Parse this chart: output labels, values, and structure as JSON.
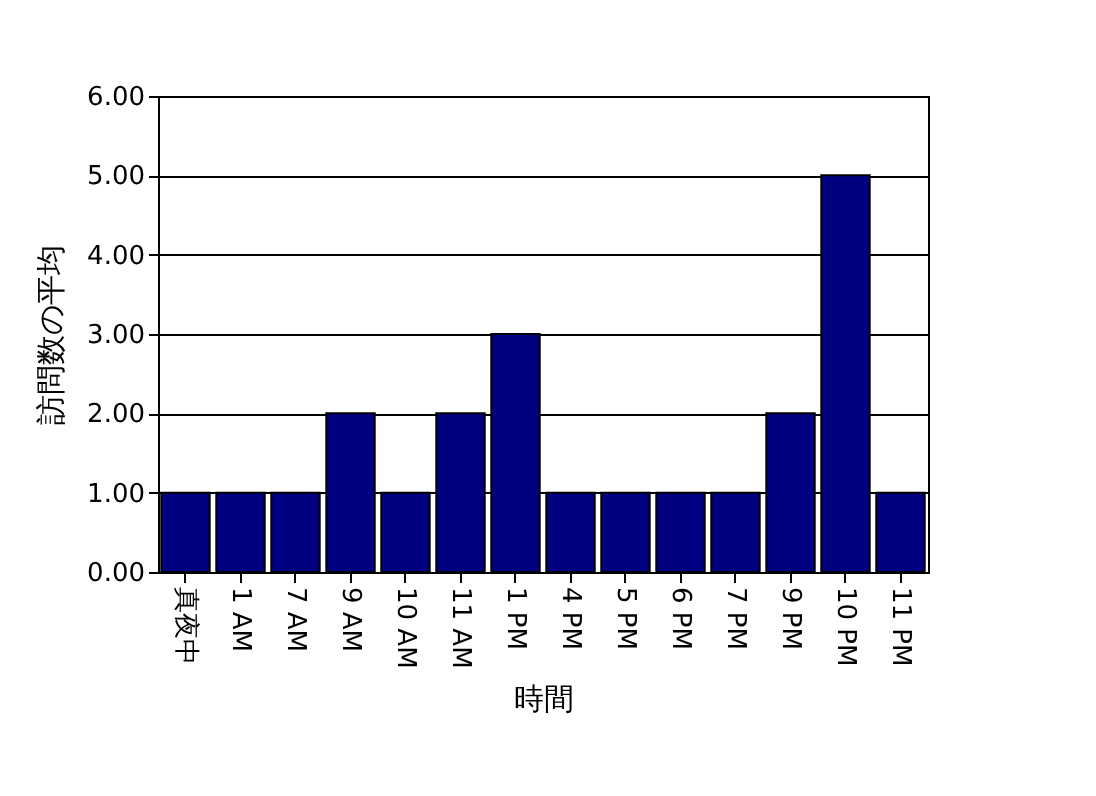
{
  "chart_data": {
    "type": "bar",
    "xlabel": "時間",
    "ylabel": "訪問数の平均",
    "categories": [
      "真夜中",
      "1 AM",
      "7 AM",
      "9 AM",
      "10 AM",
      "11 AM",
      "1 PM",
      "4 PM",
      "5 PM",
      "6 PM",
      "7 PM",
      "9 PM",
      "10 PM",
      "11 PM"
    ],
    "values": [
      1,
      1,
      1,
      2,
      1,
      2,
      3,
      1,
      1,
      1,
      1,
      2,
      5,
      1
    ],
    "color": "#000080",
    "ylim": [
      0,
      6
    ],
    "yticks": [
      {
        "value": 0,
        "label": "0.00"
      },
      {
        "value": 1,
        "label": "1.00"
      },
      {
        "value": 2,
        "label": "2.00"
      },
      {
        "value": 3,
        "label": "3.00"
      },
      {
        "value": 4,
        "label": "4.00"
      },
      {
        "value": 5,
        "label": "5.00"
      },
      {
        "value": 6,
        "label": "6.00"
      }
    ],
    "grid": "y"
  }
}
